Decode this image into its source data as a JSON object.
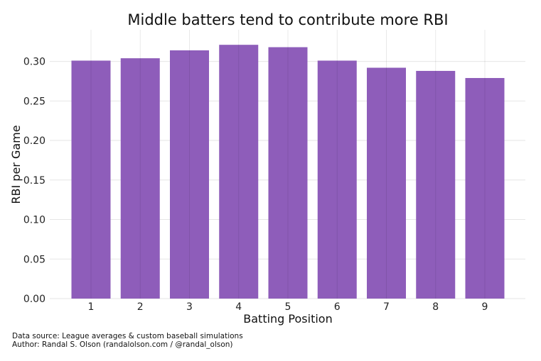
{
  "chart_data": {
    "type": "bar",
    "title": "Middle batters tend to contribute more RBI",
    "xlabel": "Batting Position",
    "ylabel": "RBI per Game",
    "categories": [
      "1",
      "2",
      "3",
      "4",
      "5",
      "6",
      "7",
      "8",
      "9"
    ],
    "values": [
      0.301,
      0.304,
      0.314,
      0.321,
      0.318,
      0.301,
      0.292,
      0.288,
      0.279
    ],
    "ylim": [
      0,
      0.34
    ],
    "yticks": [
      0.0,
      0.05,
      0.1,
      0.15,
      0.2,
      0.25,
      0.3
    ],
    "ytick_labels": [
      "0.00",
      "0.05",
      "0.10",
      "0.15",
      "0.20",
      "0.25",
      "0.30"
    ],
    "grid": true,
    "bar_color": "#8e5dba",
    "grid_color": "#e6e6e6"
  },
  "footer": {
    "source": "Data source: League averages & custom baseball simulations",
    "author": "Author: Randal S. Olson (randalolson.com / @randal_olson)"
  }
}
